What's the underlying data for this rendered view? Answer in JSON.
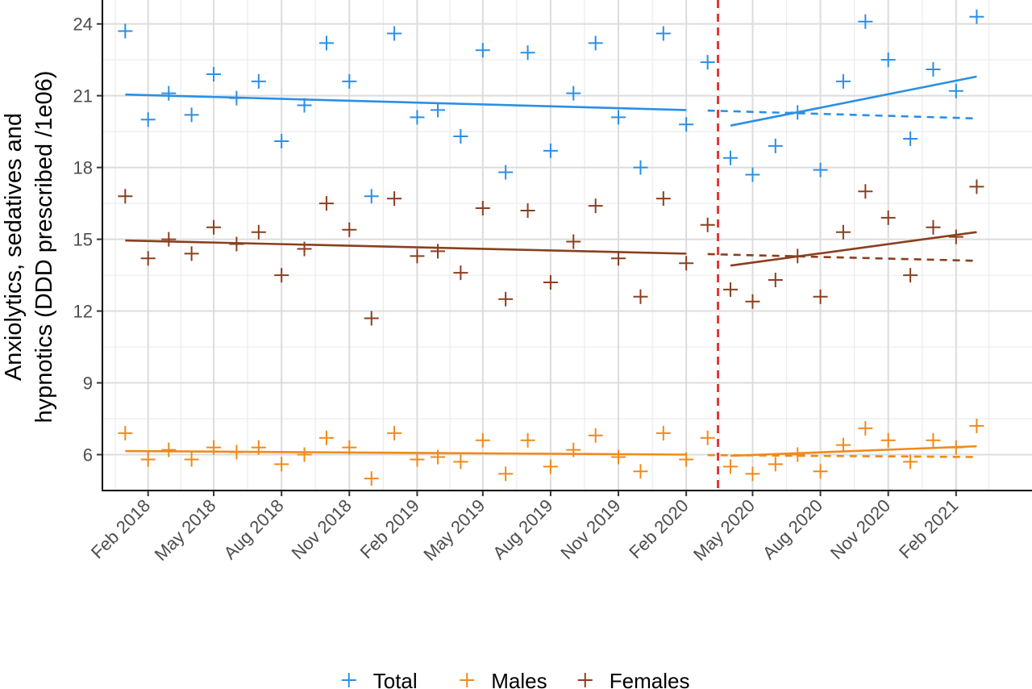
{
  "chart_data": {
    "type": "scatter",
    "title": "",
    "xlabel": "",
    "ylabel": "Anxiolytics, sedatives and hypnotics (DDD prescribed /1e06)",
    "ylabel_lines": [
      "Anxiolytics, sedatives and",
      "hypnotics (DDD prescribed /1e06)"
    ],
    "ylim": [
      4.5,
      25
    ],
    "yticks": [
      6,
      9,
      12,
      15,
      18,
      21,
      24
    ],
    "xlim": [
      "2017-12-01",
      "2021-05-15"
    ],
    "xticks": [
      {
        "date": "2018-02-01",
        "label": "Feb 2018"
      },
      {
        "date": "2018-05-01",
        "label": "May 2018"
      },
      {
        "date": "2018-08-01",
        "label": "Aug 2018"
      },
      {
        "date": "2018-11-01",
        "label": "Nov 2018"
      },
      {
        "date": "2019-02-01",
        "label": "Feb 2019"
      },
      {
        "date": "2019-05-01",
        "label": "May 2019"
      },
      {
        "date": "2019-08-01",
        "label": "Aug 2019"
      },
      {
        "date": "2019-11-01",
        "label": "Nov 2019"
      },
      {
        "date": "2020-02-01",
        "label": "Feb 2020"
      },
      {
        "date": "2020-05-01",
        "label": "May 2020"
      },
      {
        "date": "2020-08-01",
        "label": "Aug 2020"
      },
      {
        "date": "2020-11-01",
        "label": "Nov 2020"
      },
      {
        "date": "2021-02-01",
        "label": "Feb 2021"
      }
    ],
    "x": [
      "2018-01-01",
      "2018-02-01",
      "2018-03-01",
      "2018-04-01",
      "2018-05-01",
      "2018-06-01",
      "2018-07-01",
      "2018-08-01",
      "2018-09-01",
      "2018-10-01",
      "2018-11-01",
      "2018-12-01",
      "2019-01-01",
      "2019-02-01",
      "2019-03-01",
      "2019-04-01",
      "2019-05-01",
      "2019-06-01",
      "2019-07-01",
      "2019-08-01",
      "2019-09-01",
      "2019-10-01",
      "2019-11-01",
      "2019-12-01",
      "2020-01-01",
      "2020-02-01",
      "2020-03-01",
      "2020-04-01",
      "2020-05-01",
      "2020-06-01",
      "2020-07-01",
      "2020-08-01",
      "2020-09-01",
      "2020-10-01",
      "2020-11-01",
      "2020-12-01",
      "2021-01-01",
      "2021-02-01",
      "2021-03-01"
    ],
    "series": [
      {
        "name": "Total",
        "color": "#2b8fe5",
        "values": [
          23.7,
          20.0,
          21.1,
          20.2,
          21.9,
          20.9,
          21.6,
          19.1,
          20.6,
          23.2,
          21.6,
          16.8,
          23.6,
          20.1,
          20.4,
          19.3,
          22.9,
          17.8,
          22.8,
          18.7,
          21.1,
          23.2,
          20.1,
          18.0,
          23.6,
          19.8,
          22.4,
          18.4,
          17.7,
          18.9,
          20.3,
          17.9,
          21.6,
          24.1,
          22.5,
          19.2,
          22.1,
          21.2,
          24.3
        ],
        "trend_pre": [
          [
            "2018-01-01",
            21.05
          ],
          [
            "2020-02-01",
            20.4
          ]
        ],
        "trend_post": [
          [
            "2020-04-01",
            19.75
          ],
          [
            "2021-03-01",
            21.8
          ]
        ],
        "counterfactual": [
          [
            "2020-03-01",
            20.38
          ],
          [
            "2021-03-01",
            20.05
          ]
        ]
      },
      {
        "name": "Males",
        "color": "#f08a1a",
        "values": [
          6.9,
          5.8,
          6.2,
          5.8,
          6.3,
          6.1,
          6.3,
          5.6,
          6.0,
          6.7,
          6.3,
          5.0,
          6.9,
          5.8,
          5.9,
          5.7,
          6.6,
          5.2,
          6.6,
          5.5,
          6.2,
          6.8,
          5.9,
          5.3,
          6.9,
          5.8,
          6.7,
          5.5,
          5.2,
          5.6,
          6.0,
          5.3,
          6.4,
          7.1,
          6.6,
          5.7,
          6.6,
          6.3,
          7.2
        ],
        "trend_pre": [
          [
            "2018-01-01",
            6.15
          ],
          [
            "2020-02-01",
            6.0
          ]
        ],
        "trend_post": [
          [
            "2020-04-01",
            5.95
          ],
          [
            "2021-03-01",
            6.35
          ]
        ],
        "counterfactual": [
          [
            "2020-03-01",
            5.98
          ],
          [
            "2021-03-01",
            5.9
          ]
        ]
      },
      {
        "name": "Females",
        "color": "#8a3f1f",
        "values": [
          16.8,
          14.2,
          15.0,
          14.4,
          15.5,
          14.8,
          15.3,
          13.5,
          14.6,
          16.5,
          15.4,
          11.7,
          16.7,
          14.3,
          14.5,
          13.6,
          16.3,
          12.5,
          16.2,
          13.2,
          14.9,
          16.4,
          14.2,
          12.6,
          16.7,
          14.0,
          15.6,
          12.9,
          12.4,
          13.3,
          14.3,
          12.6,
          15.3,
          17.0,
          15.9,
          13.5,
          15.5,
          15.1,
          17.2
        ],
        "trend_pre": [
          [
            "2018-01-01",
            14.95
          ],
          [
            "2020-02-01",
            14.4
          ]
        ],
        "trend_post": [
          [
            "2020-04-01",
            13.9
          ],
          [
            "2021-03-01",
            15.3
          ]
        ],
        "counterfactual": [
          [
            "2020-03-01",
            14.38
          ],
          [
            "2021-03-01",
            14.1
          ]
        ]
      }
    ],
    "intervention_line": {
      "date": "2020-03-15",
      "color": "#e02020",
      "style": "dashed"
    },
    "grid": true,
    "legend": {
      "placement": "bottom",
      "entries": [
        "Total",
        "Males",
        "Females"
      ]
    }
  }
}
